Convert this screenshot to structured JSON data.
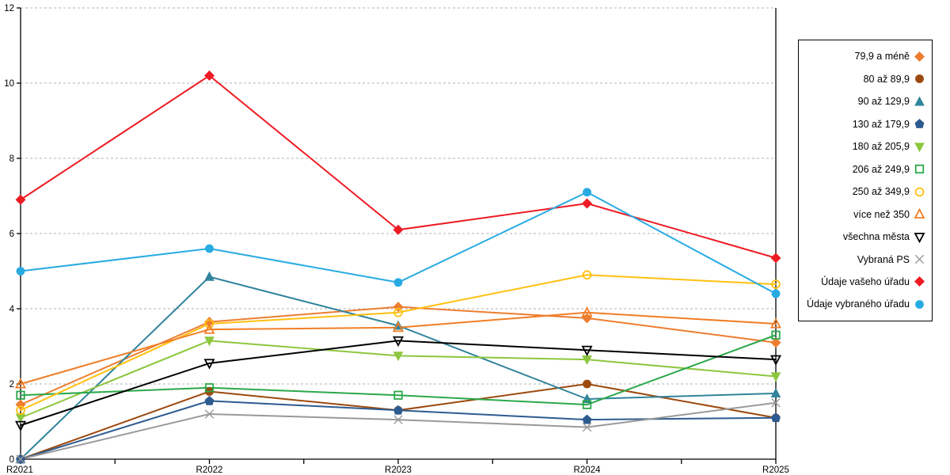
{
  "chart_data": {
    "type": "line",
    "categories": [
      "R2021",
      "R2022",
      "R2023",
      "R2024",
      "R2025"
    ],
    "title": "",
    "xlabel": "",
    "ylabel": "",
    "ylim": [
      0,
      12
    ],
    "yticks": [
      0,
      2,
      4,
      6,
      8,
      10,
      12
    ],
    "grid": "horizontal-dashed",
    "legend_position": "right-box",
    "axis_color": "#000000",
    "gridline_color": "#b3b3b3",
    "series": [
      {
        "name": "79,9 a méně",
        "marker": "diamond",
        "fill": "filled",
        "color": "#ED7D31",
        "values": [
          1.45,
          3.65,
          4.05,
          3.75,
          3.1
        ]
      },
      {
        "name": "80 až 89,9",
        "marker": "circle",
        "fill": "filled",
        "color": "#9C4A0E",
        "values": [
          0.0,
          1.8,
          1.3,
          2.0,
          1.1
        ]
      },
      {
        "name": "90 až 129,9",
        "marker": "triangle-up",
        "fill": "filled",
        "color": "#31849B",
        "values": [
          0.0,
          4.85,
          3.55,
          1.6,
          1.75
        ]
      },
      {
        "name": "130 až 179,9",
        "marker": "pentagon",
        "fill": "filled",
        "color": "#2E5B8F",
        "values": [
          0.0,
          1.55,
          1.3,
          1.05,
          1.1
        ]
      },
      {
        "name": "180 až 205,9",
        "marker": "triangle-down",
        "fill": "filled",
        "color": "#8DC63F",
        "values": [
          1.1,
          3.15,
          2.75,
          2.65,
          2.2
        ]
      },
      {
        "name": "206 až 249,9",
        "marker": "square",
        "fill": "open",
        "color": "#2BA84A",
        "values": [
          1.7,
          1.9,
          1.7,
          1.45,
          3.3
        ]
      },
      {
        "name": "250 až 349,9",
        "marker": "circle",
        "fill": "open",
        "color": "#FFC010",
        "values": [
          1.3,
          3.6,
          3.9,
          4.9,
          4.65
        ]
      },
      {
        "name": "více než 350",
        "marker": "triangle-up",
        "fill": "open",
        "color": "#F07E26",
        "values": [
          2.0,
          3.45,
          3.5,
          3.9,
          3.6
        ]
      },
      {
        "name": "všechna města",
        "marker": "triangle-down",
        "fill": "open",
        "color": "#000000",
        "values": [
          0.9,
          2.55,
          3.15,
          2.9,
          2.65
        ]
      },
      {
        "name": "Vybraná PS",
        "marker": "x",
        "fill": "open",
        "color": "#999999",
        "values": [
          0.0,
          1.2,
          1.05,
          0.85,
          1.5
        ]
      },
      {
        "name": "Údaje vašeho úřadu",
        "marker": "diamond",
        "fill": "filled",
        "color": "#ED1C24",
        "values": [
          6.9,
          10.2,
          6.1,
          6.8,
          5.35
        ]
      },
      {
        "name": "Údaje vybraného úřadu",
        "marker": "circle",
        "fill": "filled",
        "color": "#29ABE2",
        "values": [
          5.0,
          5.6,
          4.7,
          7.1,
          4.4
        ]
      }
    ]
  }
}
